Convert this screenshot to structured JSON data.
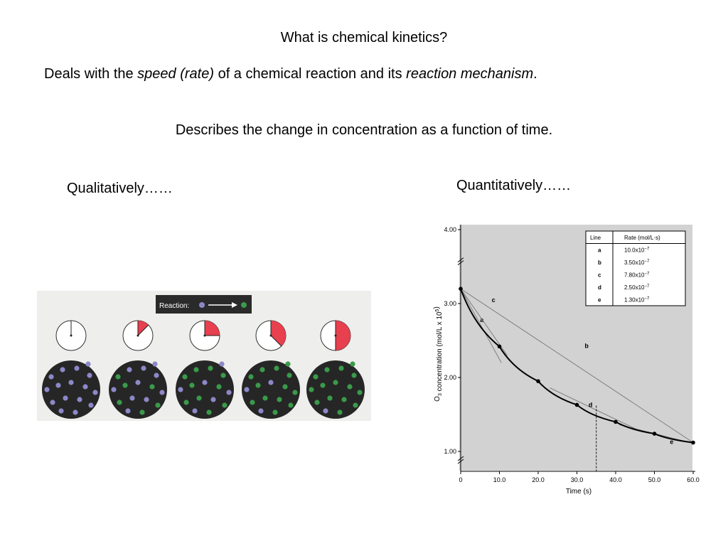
{
  "slide": {
    "title": "What is chemical kinetics?",
    "line1": {
      "part1": "Deals with the ",
      "em1": "speed (rate)",
      "part2": " of a chemical reaction and its ",
      "em2": "reaction mechanism",
      "part3": "."
    },
    "line2": "Describes the change in concentration as a function of time.",
    "qualitative_label": "Qualitatively……",
    "quantitative_label": "Quantitatively……"
  },
  "qualitative_figure": {
    "legend_label": "Reaction:",
    "colors": {
      "reactant": "#8c88c8",
      "product": "#3a9a4a",
      "flask": "#262626",
      "clock_fill": "#e8404e"
    },
    "clock_fractions": [
      0,
      0.125,
      0.25,
      0.375,
      0.5
    ],
    "product_counts": [
      0,
      6,
      10,
      13,
      15
    ]
  },
  "chart_data": {
    "type": "line",
    "xlabel": "Time (s)",
    "ylabel": "O3 concentration (mol/L x 10^5)",
    "x_ticks": [
      "0",
      "10.0",
      "20.0",
      "30.0",
      "40.0",
      "50.0",
      "60.0"
    ],
    "y_ticks": [
      "1.00",
      "2.00",
      "3.00",
      "4.00"
    ],
    "xlim": [
      0,
      60
    ],
    "ylim": [
      1.0,
      4.0
    ],
    "series": [
      {
        "values": [
          {
            "x": 0,
            "y": 3.2
          },
          {
            "x": 10,
            "y": 2.42
          },
          {
            "x": 20,
            "y": 1.95
          },
          {
            "x": 30,
            "y": 1.63
          },
          {
            "x": 40,
            "y": 1.4
          },
          {
            "x": 50,
            "y": 1.24
          },
          {
            "x": 60,
            "y": 1.12
          }
        ]
      }
    ],
    "tangent_lines": [
      {
        "label": "a",
        "x1": 0,
        "y1": 3.2,
        "x2": 10.5,
        "y2": 2.2
      },
      {
        "label": "b",
        "x1": 0,
        "y1": 3.2,
        "x2": 60,
        "y2": 1.12
      },
      {
        "label": "c",
        "x1": 0,
        "y1": 3.2,
        "x2": 12,
        "y2": 2.3
      },
      {
        "label": "d",
        "x1": 23,
        "y1": 1.86,
        "x2": 47,
        "y2": 1.26
      },
      {
        "label": "e",
        "x1": 41,
        "y1": 1.36,
        "x2": 60,
        "y2": 1.11
      }
    ],
    "vertical_marker_x": 35,
    "rate_table": {
      "headers": [
        "Line",
        "Rate (mol/L·s)"
      ],
      "rows": [
        [
          "a",
          "10.0x10",
          "−7"
        ],
        [
          "b",
          "3.50x10",
          "−7"
        ],
        [
          "c",
          "7.80x10",
          "−7"
        ],
        [
          "d",
          "2.50x10",
          "−7"
        ],
        [
          "e",
          "1.30x10",
          "−7"
        ]
      ]
    }
  }
}
